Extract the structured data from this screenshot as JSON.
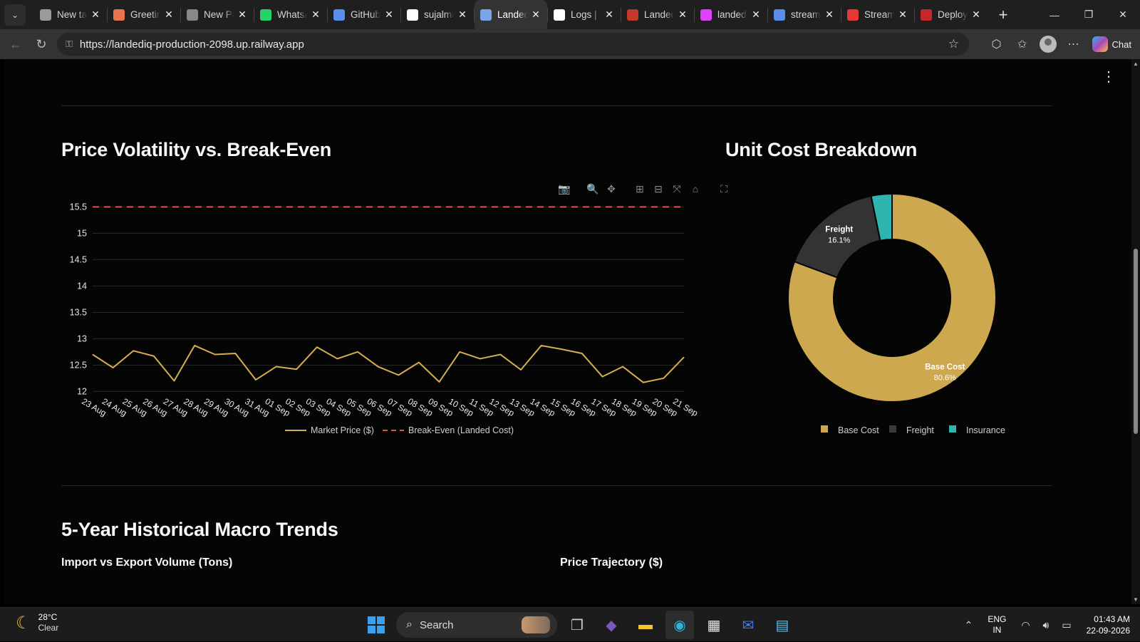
{
  "browser": {
    "tabs": [
      {
        "title": "New tab",
        "icon": "page-icon",
        "color": "#9a9a9a",
        "active": false
      },
      {
        "title": "Greetings",
        "icon": "claude-icon",
        "color": "#e8744f",
        "active": false
      },
      {
        "title": "New Prompt",
        "icon": "chat-icon",
        "color": "#888888",
        "active": false
      },
      {
        "title": "WhatsApp",
        "icon": "whatsapp-icon",
        "color": "#25d366",
        "active": false
      },
      {
        "title": "GitHub",
        "icon": "search-icon",
        "color": "#5b8def",
        "active": false
      },
      {
        "title": "sujalmane",
        "icon": "github-icon",
        "color": "#ffffff",
        "active": false
      },
      {
        "title": "LandedIQ",
        "icon": "streamlit-icon",
        "color": "#7aa6e8",
        "active": true
      },
      {
        "title": "Logs | Railway",
        "icon": "railway-icon",
        "color": "#ffffff",
        "active": false
      },
      {
        "title": "LandedIQ",
        "icon": "app-icon",
        "color": "#c0392b",
        "active": false
      },
      {
        "title": "landediq",
        "icon": "g-icon",
        "color": "#e040fb",
        "active": false
      },
      {
        "title": "streamlit",
        "icon": "search-icon",
        "color": "#5b8def",
        "active": false
      },
      {
        "title": "Streamlit",
        "icon": "streamlit-crown-icon",
        "color": "#e53935",
        "active": false
      },
      {
        "title": "Deploy",
        "icon": "deploy-icon",
        "color": "#c62828",
        "active": false
      }
    ],
    "url": "https://landediq-production-2098.up.railway.app",
    "chat_label": "Chat"
  },
  "page": {
    "price_section_title": "Price Volatility vs. Break-Even",
    "cost_section_title": "Unit Cost Breakdown",
    "macro_section_title": "5-Year Historical Macro Trends",
    "import_export_title": "Import vs Export Volume (Tons)",
    "price_trajectory_title": "Price Trajectory ($)"
  },
  "chart_data": [
    {
      "type": "line",
      "title": "Price Volatility vs. Break-Even",
      "categories": [
        "23 Aug",
        "24 Aug",
        "25 Aug",
        "26 Aug",
        "27 Aug",
        "28 Aug",
        "29 Aug",
        "30 Aug",
        "31 Aug",
        "01 Sep",
        "02 Sep",
        "03 Sep",
        "04 Sep",
        "05 Sep",
        "06 Sep",
        "07 Sep",
        "08 Sep",
        "09 Sep",
        "10 Sep",
        "11 Sep",
        "12 Sep",
        "13 Sep",
        "14 Sep",
        "15 Sep",
        "16 Sep",
        "17 Sep",
        "18 Sep",
        "19 Sep",
        "20 Sep",
        "21 Sep"
      ],
      "series": [
        {
          "name": "Market Price ($)",
          "color": "#d4af4f",
          "dash": "solid",
          "values": [
            12.7,
            12.45,
            12.77,
            12.67,
            12.2,
            12.87,
            12.7,
            12.72,
            12.22,
            12.47,
            12.42,
            12.84,
            12.62,
            12.75,
            12.47,
            12.31,
            12.55,
            12.18,
            12.75,
            12.62,
            12.7,
            12.41,
            12.87,
            12.8,
            12.72,
            12.28,
            12.47,
            12.17,
            12.25,
            12.65
          ]
        },
        {
          "name": "Break-Even (Landed Cost)",
          "color": "#e0524a",
          "dash": "dashed",
          "values": [
            15.5,
            15.5,
            15.5,
            15.5,
            15.5,
            15.5,
            15.5,
            15.5,
            15.5,
            15.5,
            15.5,
            15.5,
            15.5,
            15.5,
            15.5,
            15.5,
            15.5,
            15.5,
            15.5,
            15.5,
            15.5,
            15.5,
            15.5,
            15.5,
            15.5,
            15.5,
            15.5,
            15.5,
            15.5,
            15.5
          ]
        }
      ],
      "yticks": [
        "12",
        "12.5",
        "13",
        "13.5",
        "14",
        "14.5",
        "15",
        "15.5"
      ],
      "ylim": [
        11.95,
        15.6
      ],
      "grid": true,
      "legend": "bottom"
    },
    {
      "type": "pie",
      "title": "Unit Cost Breakdown",
      "hole": true,
      "slices": [
        {
          "label": "Base Cost",
          "pct_label": "80.6%",
          "value": 80.6,
          "color": "#cda84f"
        },
        {
          "label": "Freight",
          "pct_label": "16.1%",
          "value": 16.1,
          "color": "#333333"
        },
        {
          "label": "Insurance",
          "pct_label": "3.23%",
          "value": 3.23,
          "color": "#2fb5ad"
        }
      ],
      "legend": "bottom"
    }
  ],
  "taskbar": {
    "weather_temp": "28°C",
    "weather_desc": "Clear",
    "search_label": "Search",
    "lang_top": "ENG",
    "lang_bottom": "IN",
    "time": "01:43 AM",
    "date": "22-09-2026"
  }
}
